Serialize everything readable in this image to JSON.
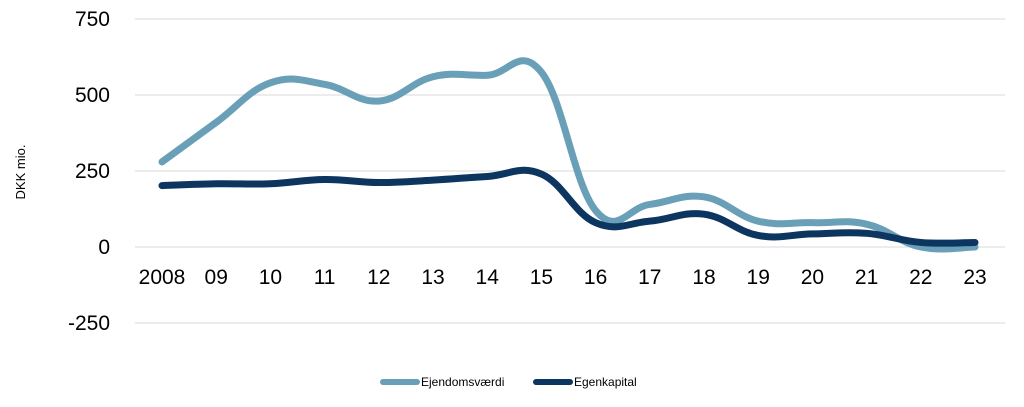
{
  "chart_data": {
    "type": "line",
    "categories": [
      "2008",
      "09",
      "10",
      "11",
      "12",
      "13",
      "14",
      "15",
      "16",
      "17",
      "18",
      "19",
      "20",
      "21",
      "22",
      "23"
    ],
    "series": [
      {
        "name": "Ejendomsværdi",
        "color": "#6a9fb8",
        "values": [
          280,
          410,
          540,
          535,
          480,
          560,
          565,
          575,
          120,
          140,
          165,
          85,
          80,
          75,
          0,
          0
        ]
      },
      {
        "name": "Egenkapital",
        "color": "#0c3560",
        "values": [
          202,
          208,
          208,
          222,
          212,
          220,
          232,
          240,
          80,
          85,
          108,
          38,
          43,
          45,
          15,
          15
        ]
      }
    ],
    "ylabel": "DKK mio.",
    "ylim": [
      -250,
      750
    ],
    "yticks": [
      -250,
      0,
      250,
      500,
      750
    ],
    "ytick_labels": [
      "-250",
      "0",
      "250",
      "500",
      "750"
    ],
    "grid": true,
    "legend_position": "bottom"
  }
}
